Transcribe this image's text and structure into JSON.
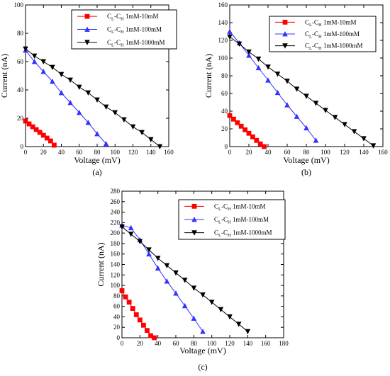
{
  "chart_data": [
    {
      "type": "line",
      "panel_label": "(a)",
      "xlabel": "Voltage (mV)",
      "ylabel": "Current (nA)",
      "xlim": [
        0,
        160
      ],
      "ylim": [
        0,
        100
      ],
      "xticks": [
        0,
        20,
        40,
        60,
        80,
        100,
        120,
        140,
        160
      ],
      "yticks": [
        0,
        20,
        40,
        60,
        80,
        100
      ],
      "grid": false,
      "legend_position": "top-right",
      "series": [
        {
          "name": "CL-CH 1mM-10mM",
          "name_main": "C",
          "sub1": "L",
          "mid": "-C",
          "sub2": "H",
          "name_tail": " 1mM-10mM",
          "color": "#ff0000",
          "marker": "square",
          "x": [
            0,
            4,
            8,
            12,
            16,
            20,
            24,
            28,
            32
          ],
          "y": [
            18,
            16,
            14,
            12,
            10,
            8,
            6,
            4,
            1
          ]
        },
        {
          "name": "CL-CH 1mM-100mM",
          "name_main": "C",
          "sub1": "L",
          "mid": "-C",
          "sub2": "H",
          "name_tail": " 1mM-100mM",
          "color": "#3333ff",
          "marker": "triangle-up",
          "x": [
            0,
            10,
            20,
            30,
            40,
            50,
            60,
            70,
            80,
            90
          ],
          "y": [
            68,
            60,
            53,
            46,
            38,
            31,
            24,
            17,
            9,
            2
          ]
        },
        {
          "name": "CL-CH 1mM-1000mM",
          "name_main": "C",
          "sub1": "L",
          "mid": "-C",
          "sub2": "H",
          "name_tail": " 1mM-1000mM",
          "color": "#000000",
          "marker": "triangle-down",
          "x": [
            0,
            10,
            20,
            30,
            40,
            50,
            60,
            70,
            80,
            90,
            100,
            110,
            120,
            130,
            140,
            150
          ],
          "y": [
            69,
            64,
            60,
            56,
            51,
            47,
            42,
            38,
            33,
            28,
            24,
            19,
            14,
            10,
            5,
            0
          ]
        }
      ]
    },
    {
      "type": "line",
      "panel_label": "(b)",
      "xlabel": "Voltage (mV)",
      "ylabel": "Current (nA)",
      "xlim": [
        0,
        160
      ],
      "ylim": [
        0,
        160
      ],
      "xticks": [
        0,
        20,
        40,
        60,
        80,
        100,
        120,
        140,
        160
      ],
      "yticks": [
        0,
        20,
        40,
        60,
        80,
        100,
        120,
        140,
        160
      ],
      "grid": false,
      "legend_position": "top-right",
      "series": [
        {
          "name": "CL-CH 1mM-10mM",
          "name_main": "C",
          "sub1": "L",
          "mid": "-C",
          "sub2": "H",
          "name_tail": " 1mM-10mM",
          "color": "#ff0000",
          "marker": "square",
          "x": [
            0,
            4,
            8,
            12,
            16,
            20,
            24,
            28,
            32,
            36
          ],
          "y": [
            35,
            31,
            27,
            23,
            19,
            15,
            11,
            7,
            3,
            0
          ]
        },
        {
          "name": "CL-CH 1mM-100mM",
          "name_main": "C",
          "sub1": "L",
          "mid": "-C",
          "sub2": "H",
          "name_tail": " 1mM-100mM",
          "color": "#3333ff",
          "marker": "triangle-up",
          "x": [
            0,
            10,
            20,
            30,
            40,
            50,
            60,
            70,
            80,
            90
          ],
          "y": [
            130,
            117,
            103,
            89,
            75,
            61,
            47,
            34,
            21,
            7
          ]
        },
        {
          "name": "CL-CH 1mM-1000mM",
          "name_main": "C",
          "sub1": "L",
          "mid": "-C",
          "sub2": "H",
          "name_tail": " 1mM-1000mM",
          "color": "#000000",
          "marker": "triangle-down",
          "x": [
            0,
            10,
            20,
            30,
            40,
            50,
            60,
            70,
            80,
            90,
            100,
            110,
            120,
            130,
            140,
            150
          ],
          "y": [
            124,
            116,
            107,
            99,
            90,
            82,
            74,
            65,
            57,
            49,
            41,
            33,
            25,
            17,
            9,
            1
          ]
        }
      ]
    },
    {
      "type": "line",
      "panel_label": "(c)",
      "xlabel": "Voltage (mV)",
      "ylabel": "Current (nA)",
      "xlim": [
        0,
        180
      ],
      "ylim": [
        0,
        280
      ],
      "xticks": [
        0,
        20,
        40,
        60,
        80,
        100,
        120,
        140,
        160,
        180
      ],
      "yticks": [
        0,
        20,
        40,
        60,
        80,
        100,
        120,
        140,
        160,
        180,
        200,
        220,
        240,
        260,
        280
      ],
      "grid": false,
      "legend_position": "top-right",
      "series": [
        {
          "name": "CL-CH 1mM-10mM",
          "name_main": "C",
          "sub1": "L",
          "mid": "-C",
          "sub2": "H",
          "name_tail": " 1mM-10mM",
          "color": "#ff0000",
          "marker": "square",
          "x": [
            0,
            4,
            8,
            12,
            16,
            20,
            24,
            28,
            32,
            36
          ],
          "y": [
            90,
            78,
            68,
            56,
            44,
            34,
            24,
            14,
            4,
            0
          ]
        },
        {
          "name": "CL-CH 1mM-100mM",
          "name_main": "C",
          "sub1": "L",
          "mid": "-C",
          "sub2": "H",
          "name_tail": " 1mM-100mM",
          "color": "#3333ff",
          "marker": "triangle-up",
          "x": [
            0,
            10,
            20,
            30,
            40,
            50,
            60,
            70,
            80,
            90
          ],
          "y": [
            215,
            210,
            187,
            160,
            133,
            108,
            85,
            61,
            37,
            12
          ]
        },
        {
          "name": "CL-CH 1mM-1000mM",
          "name_main": "C",
          "sub1": "L",
          "mid": "-C",
          "sub2": "H",
          "name_tail": " 1mM-1000mM",
          "color": "#000000",
          "marker": "triangle-down",
          "x": [
            0,
            10,
            20,
            30,
            40,
            50,
            60,
            70,
            80,
            90,
            100,
            110,
            120,
            130,
            140
          ],
          "y": [
            212,
            198,
            184,
            168,
            152,
            138,
            124,
            110,
            95,
            82,
            68,
            54,
            40,
            26,
            12
          ]
        }
      ]
    }
  ]
}
